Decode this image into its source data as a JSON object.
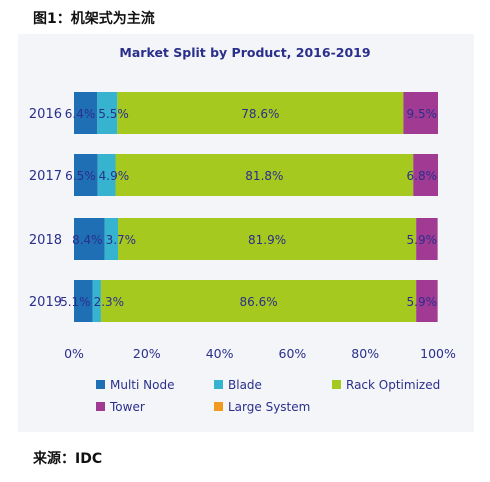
{
  "figure_title": "图1：机架式为主流",
  "source": "来源：IDC",
  "chart_data": {
    "type": "bar",
    "orientation": "horizontal",
    "stacked": "percent",
    "title": "Market Split by Product, 2016-2019",
    "categories": [
      "2016",
      "2017",
      "2018",
      "2019"
    ],
    "series": [
      {
        "name": "Multi Node",
        "color": "#1f6fb4",
        "values": [
          6.4,
          6.5,
          8.4,
          5.1
        ],
        "labels": [
          "6.4%",
          "6.5%",
          "8.4%",
          "5.1%"
        ]
      },
      {
        "name": "Blade",
        "color": "#35b3cf",
        "values": [
          5.5,
          4.9,
          3.7,
          2.3
        ],
        "labels": [
          "5.5%",
          "4.9%",
          "3.7%",
          "2.3%"
        ]
      },
      {
        "name": "Rack Optimized",
        "color": "#a6c91f",
        "values": [
          78.6,
          81.8,
          81.9,
          86.6
        ],
        "labels": [
          "78.6%",
          "81.8%",
          "81.9%",
          "86.6%"
        ]
      },
      {
        "name": "Tower",
        "color": "#a03a93",
        "values": [
          9.5,
          6.8,
          5.9,
          5.9
        ],
        "labels": [
          "9.5%",
          "6.8%",
          "5.9%",
          "5.9%"
        ]
      },
      {
        "name": "Large System",
        "color": "#f29a1f",
        "values": [
          0,
          0,
          0,
          0
        ],
        "labels": [
          "",
          "",
          "",
          ""
        ]
      }
    ],
    "xaxis": {
      "min": 0,
      "max": 100,
      "ticks": [
        "0%",
        "20%",
        "40%",
        "60%",
        "80%",
        "100%"
      ]
    },
    "grid": false,
    "legend_position": "bottom"
  }
}
